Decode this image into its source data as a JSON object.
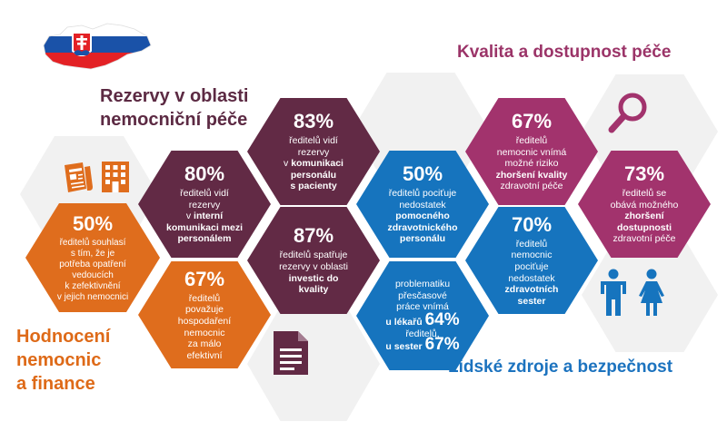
{
  "headings": {
    "hospital_reserves": "Rezervy v oblasti\nnemocniční péče",
    "quality": "Kvalita a dostupnost péče",
    "evaluation": "Hodnocení\nnemocnic\na finance",
    "human_resources": "Lidské zdroje a bezpečnost"
  },
  "hexes": {
    "communication": {
      "pct": "83%",
      "pre": "ředitelů vidí\nrezervy\nv ",
      "bold": "komunikaci\npersonálu\ns pacienty",
      "post": ""
    },
    "internal": {
      "pct": "80%",
      "pre": "ředitelů vidí\nrezervy\nv ",
      "bold": "interní\nkomunikaci mezi\npersonálem",
      "post": ""
    },
    "investment": {
      "pct": "87%",
      "pre": "ředitelů spatřuje\nrezervy v oblasti\n",
      "bold": "investic do\nkvality",
      "post": ""
    },
    "effectiveness": {
      "pct": "50%",
      "pre": "ředitelů souhlasí\ns tím, že je\npotřeba opatření\nvedoucích\nk zefektivnění\nv jejich nemocnici",
      "bold": "",
      "post": ""
    },
    "economy": {
      "pct": "67%",
      "pre": "ředitelů\npovažuje\nhospodaření\nnemocnic\nza málo\nefektivní",
      "bold": "",
      "post": ""
    },
    "auxiliary": {
      "pct": "50%",
      "pre": "ředitelů pociťuje\nnedostatek\n",
      "bold": "pomocného\nzdravotnického\npersonálu",
      "post": ""
    },
    "overtime": {
      "lead": "problematiku\npřesčasové\npráce vnímá",
      "doctors_label": "u lékařů",
      "doctors_pct": "64%",
      "mid": "ředitelů,",
      "nurses_label": "u sester",
      "nurses_pct": "67%"
    },
    "quality_risk": {
      "pct": "67%",
      "pre": "ředitelů\nnemocnic vnímá\nmožné riziko\n",
      "bold": "zhoršení kvality",
      "post": "\nzdravotní péče"
    },
    "accessibility": {
      "pct": "73%",
      "pre": "ředitelů se\nobává možného\n",
      "bold": "zhoršení\ndostupnosti",
      "post": "\nzdravotní péče"
    },
    "nurses": {
      "pct": "70%",
      "pre": "ředitelů\nnemocnic\npociťuje\nnedostatek\n",
      "bold": "zdravotních\nsester",
      "post": ""
    }
  },
  "colors": {
    "maroon": "#622a45",
    "orange": "#df6d1d",
    "blue": "#1674be",
    "magenta": "#a2336d",
    "background_hex": "#f1f1f1"
  },
  "icons": [
    "slovakia-map-icon",
    "newspaper-icon",
    "building-icon",
    "document-icon",
    "magnifier-icon",
    "man-icon",
    "woman-icon"
  ]
}
